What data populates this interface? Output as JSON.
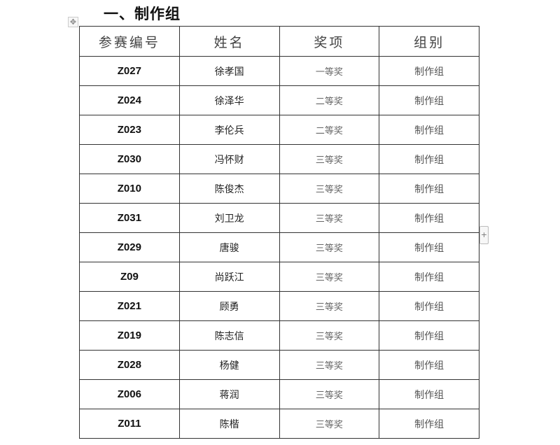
{
  "title": "一、制作组",
  "table": {
    "headers": [
      "参赛编号",
      "姓名",
      "奖项",
      "组别"
    ],
    "rows": [
      [
        "Z027",
        "徐孝国",
        "一等奖",
        "制作组"
      ],
      [
        "Z024",
        "徐泽华",
        "二等奖",
        "制作组"
      ],
      [
        "Z023",
        "李伦兵",
        "二等奖",
        "制作组"
      ],
      [
        "Z030",
        "冯怀财",
        "三等奖",
        "制作组"
      ],
      [
        "Z010",
        "陈俊杰",
        "三等奖",
        "制作组"
      ],
      [
        "Z031",
        "刘卫龙",
        "三等奖",
        "制作组"
      ],
      [
        "Z029",
        "唐骏",
        "三等奖",
        "制作组"
      ],
      [
        "Z09",
        "尚跃江",
        "三等奖",
        "制作组"
      ],
      [
        "Z021",
        "顾勇",
        "三等奖",
        "制作组"
      ],
      [
        "Z019",
        "陈志信",
        "三等奖",
        "制作组"
      ],
      [
        "Z028",
        "杨健",
        "三等奖",
        "制作组"
      ],
      [
        "Z006",
        "蒋润",
        "三等奖",
        "制作组"
      ],
      [
        "Z011",
        "陈楷",
        "三等奖",
        "制作组"
      ]
    ]
  },
  "icons": {
    "move": "move-handle-icon",
    "add": "add-row-icon"
  }
}
